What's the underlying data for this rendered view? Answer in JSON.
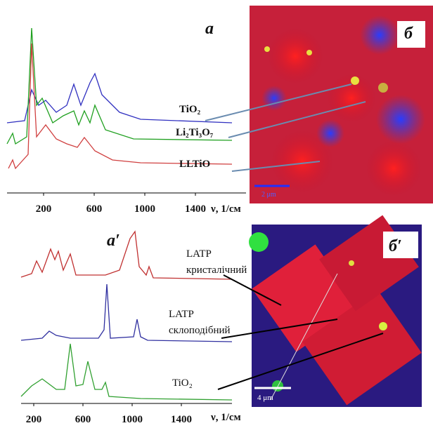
{
  "panels": [
    {
      "label": "а",
      "image_label": "б",
      "x_axis": {
        "ticks": [
          200,
          600,
          1000,
          1400
        ],
        "label": "ν, 1/см"
      },
      "curves": [
        "TiO₂",
        "Li₂Ti₃O₇",
        "LLTiO"
      ],
      "scale_bar": "2 μm"
    },
    {
      "label": "а′",
      "image_label": "б′",
      "x_axis": {
        "ticks": [
          200,
          600,
          1000,
          1400
        ],
        "label": "ν, 1/см"
      },
      "curves": [
        "LATP кристалічний",
        "LATP склоподібний",
        "TiO₂"
      ],
      "scale_bar": "4 μm"
    }
  ]
}
